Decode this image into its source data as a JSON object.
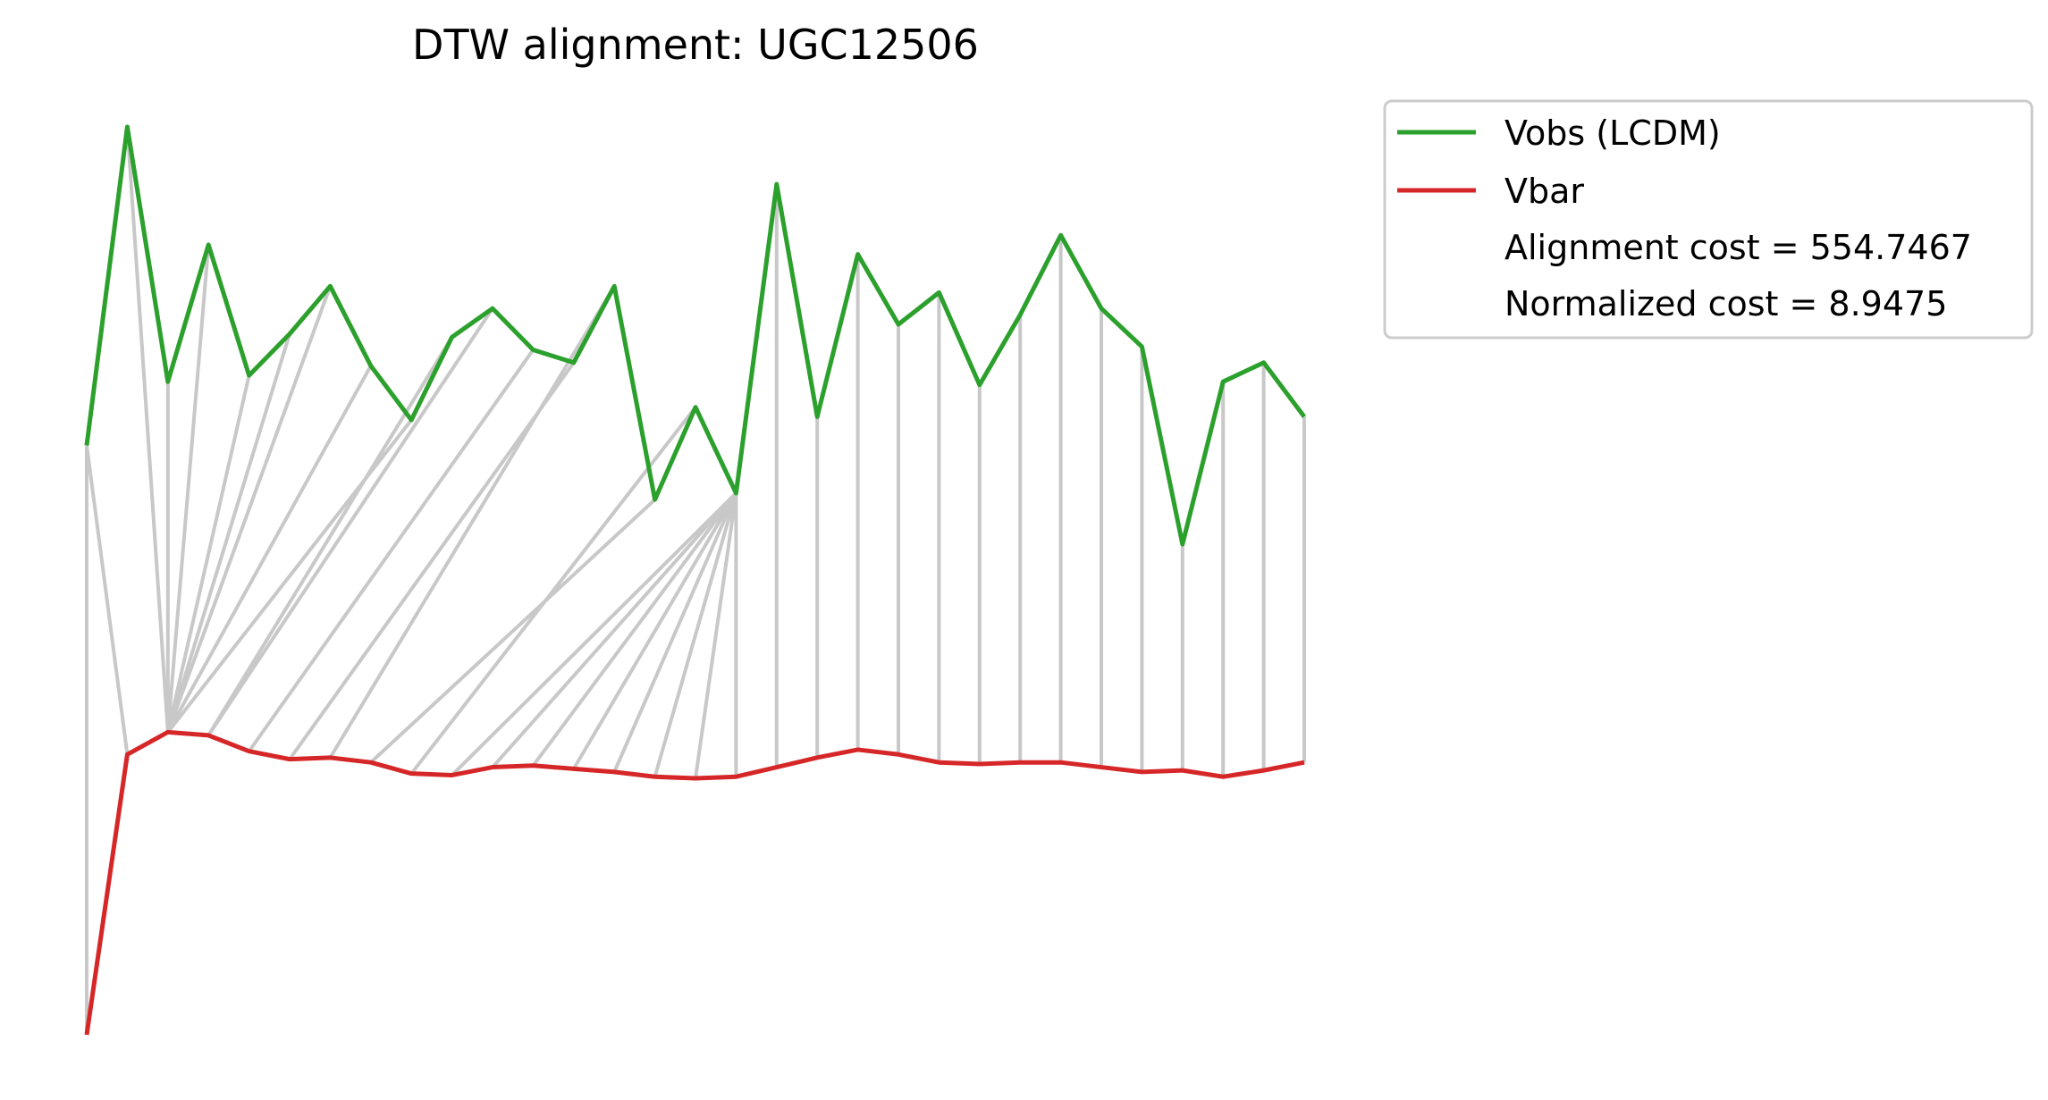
{
  "chart_data": {
    "type": "line",
    "title": "DTW alignment: UGC12506",
    "axes_visible": false,
    "grid": false,
    "legend_placement": "outside top-right",
    "colors": {
      "vobs": "#2ca02c",
      "vbar": "#d62728",
      "alignment": "#c8c8c8"
    },
    "series": [
      {
        "name": "Vobs (LCDM)",
        "key": "vobs",
        "values": [
          0.0,
          1.0,
          0.2,
          0.63,
          0.22,
          0.35,
          0.5,
          0.25,
          0.08,
          0.34,
          0.43,
          0.3,
          0.26,
          0.5,
          -0.17,
          0.12,
          -0.15,
          0.82,
          0.09,
          0.6,
          0.38,
          0.48,
          0.19,
          0.41,
          0.66,
          0.43,
          0.31,
          -0.31,
          0.2,
          0.26,
          0.09
        ]
      },
      {
        "name": "Vbar",
        "key": "vbar",
        "values": [
          -1.85,
          -0.97,
          -0.9,
          -0.91,
          -0.96,
          -0.985,
          -0.98,
          -0.995,
          -1.03,
          -1.035,
          -1.01,
          -1.005,
          -1.015,
          -1.025,
          -1.04,
          -1.045,
          -1.04,
          -1.01,
          -0.98,
          -0.955,
          -0.97,
          -0.995,
          -1.0,
          -0.995,
          -0.995,
          -1.01,
          -1.025,
          -1.02,
          -1.04,
          -1.02,
          -0.995
        ]
      }
    ],
    "alignment_pairs": [
      [
        0,
        0
      ],
      [
        0,
        1
      ],
      [
        1,
        2
      ],
      [
        2,
        2
      ],
      [
        3,
        2
      ],
      [
        4,
        2
      ],
      [
        5,
        2
      ],
      [
        6,
        2
      ],
      [
        7,
        2
      ],
      [
        8,
        2
      ],
      [
        9,
        3
      ],
      [
        10,
        3
      ],
      [
        11,
        4
      ],
      [
        12,
        5
      ],
      [
        13,
        6
      ],
      [
        14,
        7
      ],
      [
        15,
        8
      ],
      [
        16,
        9
      ],
      [
        16,
        10
      ],
      [
        16,
        11
      ],
      [
        16,
        12
      ],
      [
        16,
        13
      ],
      [
        16,
        14
      ],
      [
        16,
        15
      ],
      [
        16,
        16
      ],
      [
        17,
        17
      ],
      [
        18,
        18
      ],
      [
        19,
        19
      ],
      [
        20,
        20
      ],
      [
        21,
        21
      ],
      [
        22,
        22
      ],
      [
        23,
        23
      ],
      [
        24,
        24
      ],
      [
        25,
        25
      ],
      [
        26,
        26
      ],
      [
        27,
        27
      ],
      [
        28,
        28
      ],
      [
        29,
        29
      ],
      [
        30,
        30
      ]
    ],
    "legend": [
      {
        "label": "Vobs (LCDM)",
        "key": "vobs"
      },
      {
        "label": "Vbar",
        "key": "vbar"
      },
      {
        "label": "Alignment cost = 554.7467"
      },
      {
        "label": "Normalized cost = 8.9475"
      }
    ]
  }
}
